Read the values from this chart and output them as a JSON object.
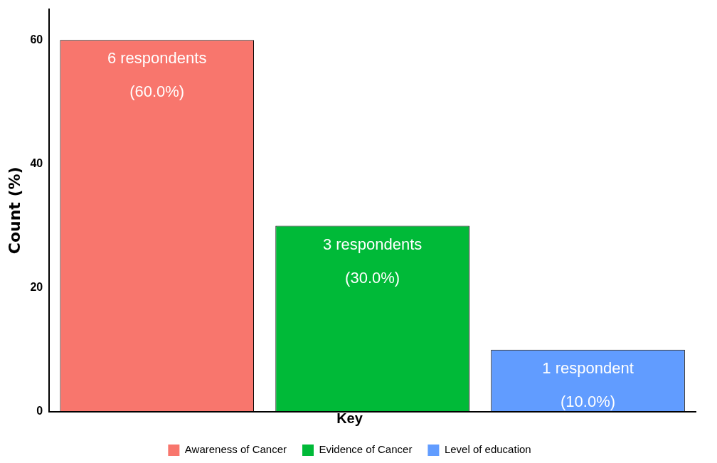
{
  "chart_data": {
    "type": "bar",
    "ylabel": "Count (%)",
    "categories": [
      null,
      null,
      null
    ],
    "series": [
      {
        "name": "Awareness of Cancer",
        "color": "#f8766d",
        "values": [
          60,
          null,
          null
        ],
        "value_labels": [
          "6 respondents\n(60.0%)",
          null,
          null
        ]
      },
      {
        "name": "Evidence of Cancer",
        "color": "#00ba38",
        "values": [
          null,
          30,
          null
        ],
        "value_labels": [
          null,
          "3 respondents\n(30.0%)",
          null
        ]
      },
      {
        "name": "Level of education",
        "color": "#619cff",
        "values": [
          null,
          null,
          10
        ],
        "value_labels": [
          null,
          null,
          "1 respondent\n(10.0%)"
        ]
      }
    ],
    "ylim": [
      0,
      65
    ],
    "yticks": [
      0,
      20,
      40,
      60
    ],
    "grid": false,
    "tick_labels": "y",
    "legend": "bottom",
    "legend_title": "Key"
  }
}
